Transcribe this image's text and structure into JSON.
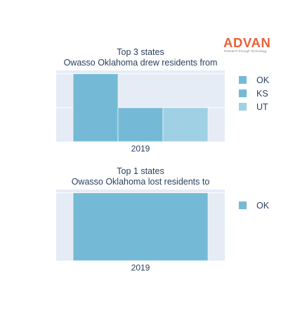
{
  "brand": {
    "logo_text": "ADVAN",
    "logo_tagline": "Research through Technology",
    "logo_color": "#e8623a"
  },
  "chart_data": [
    {
      "type": "bar",
      "title_line1": "Top 3 states",
      "title_line2": "Owasso Oklahoma drew residents from",
      "categories": [
        "2019"
      ],
      "series": [
        {
          "name": "OK",
          "values": [
            2
          ],
          "color": "#74bad6"
        },
        {
          "name": "KS",
          "values": [
            1
          ],
          "color": "#74bad6"
        },
        {
          "name": "UT",
          "values": [
            1
          ],
          "color": "#9fd0e3"
        }
      ],
      "ylim": [
        0,
        2.1
      ],
      "grid": true,
      "legend_position": "right",
      "plot_bgcolor": "#e5ecf6"
    },
    {
      "type": "bar",
      "title_line1": "Top 1 states",
      "title_line2": "Owasso Oklahoma lost residents to",
      "categories": [
        "2019"
      ],
      "series": [
        {
          "name": "OK",
          "values": [
            1
          ],
          "color": "#74bad6"
        }
      ],
      "ylim": [
        0,
        1.05
      ],
      "grid": true,
      "legend_position": "right",
      "plot_bgcolor": "#e5ecf6"
    }
  ]
}
